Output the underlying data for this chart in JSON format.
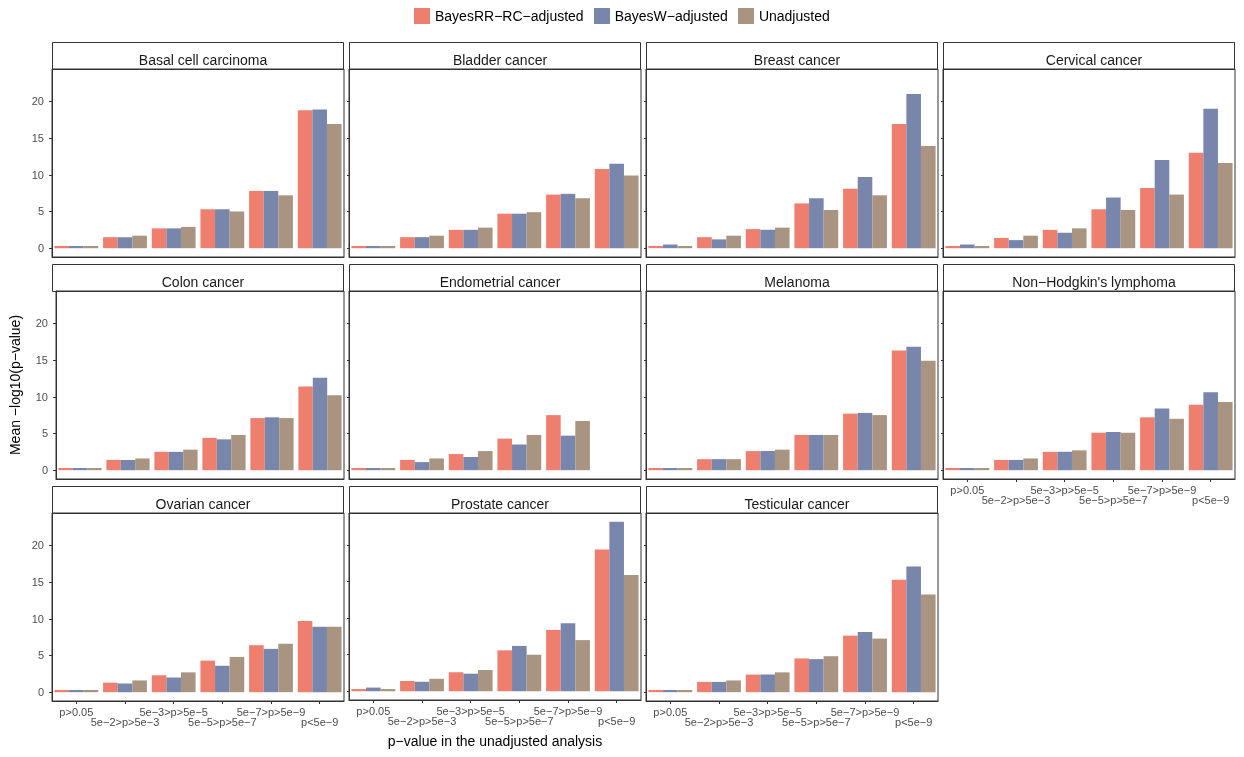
{
  "chart_data": [
    {
      "type": "bar",
      "title": "Basal cell carcinoma",
      "legend": "top",
      "tick_labels": "y",
      "categories": [
        "p>0.05",
        "5e−2>p>5e−3",
        "5e−3>p>5e−5",
        "5e−5>p>5e−7",
        "5e−7>p>5e−9",
        "p<5e−9"
      ],
      "ylim": [
        -1.2,
        24.4
      ],
      "yticks": [
        0,
        5,
        10,
        15,
        20
      ],
      "series": [
        {
          "name": "BayesRR−RC−adjusted",
          "color": "#ee7f6f",
          "values": [
            0.3,
            1.5,
            2.7,
            5.3,
            7.8,
            18.8
          ]
        },
        {
          "name": "BayesW−adjusted",
          "color": "#7886ac",
          "values": [
            0.3,
            1.5,
            2.7,
            5.3,
            7.8,
            18.9
          ]
        },
        {
          "name": "Unadjusted",
          "color": "#a89480",
          "values": [
            0.3,
            1.7,
            2.9,
            5.0,
            7.2,
            16.9
          ]
        }
      ]
    },
    {
      "type": "bar",
      "title": "Bladder cancer",
      "tick_labels": false,
      "categories": [
        "p>0.05",
        "5e−2>p>5e−3",
        "5e−3>p>5e−5",
        "5e−5>p>5e−7",
        "5e−7>p>5e−9",
        "p<5e−9"
      ],
      "ylim": [
        -1.2,
        24.4
      ],
      "yticks": [
        0,
        5,
        10,
        15,
        20
      ],
      "series": [
        {
          "name": "BayesRR−RC−adjusted",
          "color": "#ee7f6f",
          "values": [
            0.3,
            1.5,
            2.5,
            4.7,
            7.3,
            10.8
          ]
        },
        {
          "name": "BayesW−adjusted",
          "color": "#7886ac",
          "values": [
            0.3,
            1.5,
            2.5,
            4.7,
            7.4,
            11.5
          ]
        },
        {
          "name": "Unadjusted",
          "color": "#a89480",
          "values": [
            0.3,
            1.7,
            2.8,
            4.9,
            6.8,
            9.9
          ]
        }
      ]
    },
    {
      "type": "bar",
      "title": "Breast cancer",
      "tick_labels": false,
      "categories": [
        "p>0.05",
        "5e−2>p>5e−3",
        "5e−3>p>5e−5",
        "5e−5>p>5e−7",
        "5e−7>p>5e−9",
        "p<5e−9"
      ],
      "ylim": [
        -1.2,
        24.4
      ],
      "yticks": [
        0,
        5,
        10,
        15,
        20
      ],
      "series": [
        {
          "name": "BayesRR−RC−adjusted",
          "color": "#ee7f6f",
          "values": [
            0.3,
            1.5,
            2.6,
            6.1,
            8.1,
            16.9
          ]
        },
        {
          "name": "BayesW−adjusted",
          "color": "#7886ac",
          "values": [
            0.5,
            1.2,
            2.5,
            6.8,
            9.7,
            21.0
          ]
        },
        {
          "name": "Unadjusted",
          "color": "#a89480",
          "values": [
            0.3,
            1.7,
            2.8,
            5.2,
            7.2,
            13.9
          ]
        }
      ]
    },
    {
      "type": "bar",
      "title": "Cervical cancer",
      "tick_labels": false,
      "categories": [
        "p>0.05",
        "5e−2>p>5e−3",
        "5e−3>p>5e−5",
        "5e−5>p>5e−7",
        "5e−7>p>5e−9",
        "p<5e−9"
      ],
      "ylim": [
        -1.2,
        24.4
      ],
      "yticks": [
        0,
        5,
        10,
        15,
        20
      ],
      "series": [
        {
          "name": "BayesRR−RC−adjusted",
          "color": "#ee7f6f",
          "values": [
            0.3,
            1.4,
            2.5,
            5.3,
            8.2,
            13.0
          ]
        },
        {
          "name": "BayesW−adjusted",
          "color": "#7886ac",
          "values": [
            0.5,
            1.1,
            2.1,
            6.9,
            12.0,
            19.0
          ]
        },
        {
          "name": "Unadjusted",
          "color": "#a89480",
          "values": [
            0.3,
            1.7,
            2.7,
            5.2,
            7.3,
            11.6
          ]
        }
      ]
    },
    {
      "type": "bar",
      "title": "Colon cancer",
      "ylabel": "Mean −log10(p−value)",
      "tick_labels": "y",
      "categories": [
        "p>0.05",
        "5e−2>p>5e−3",
        "5e−3>p>5e−5",
        "5e−5>p>5e−7",
        "5e−7>p>5e−9",
        "p<5e−9"
      ],
      "ylim": [
        -1.2,
        24.4
      ],
      "yticks": [
        0,
        5,
        10,
        15,
        20
      ],
      "series": [
        {
          "name": "BayesRR−RC−adjusted",
          "color": "#ee7f6f",
          "values": [
            0.3,
            1.4,
            2.5,
            4.4,
            7.1,
            11.4
          ]
        },
        {
          "name": "BayesW−adjusted",
          "color": "#7886ac",
          "values": [
            0.3,
            1.4,
            2.5,
            4.2,
            7.2,
            12.6
          ]
        },
        {
          "name": "Unadjusted",
          "color": "#a89480",
          "values": [
            0.3,
            1.6,
            2.8,
            4.8,
            7.1,
            10.2
          ]
        }
      ]
    },
    {
      "type": "bar",
      "title": "Endometrial cancer",
      "tick_labels": false,
      "categories": [
        "p>0.05",
        "5e−2>p>5e−3",
        "5e−3>p>5e−5",
        "5e−5>p>5e−7",
        "5e−7>p>5e−9",
        "p<5e−9"
      ],
      "ylim": [
        -1.2,
        24.4
      ],
      "yticks": [
        0,
        5,
        10,
        15,
        20
      ],
      "series": [
        {
          "name": "BayesRR−RC−adjusted",
          "color": "#ee7f6f",
          "values": [
            0.3,
            1.4,
            2.2,
            4.3,
            7.5,
            null
          ]
        },
        {
          "name": "BayesW−adjusted",
          "color": "#7886ac",
          "values": [
            0.3,
            1.1,
            1.8,
            3.5,
            4.7,
            null
          ]
        },
        {
          "name": "Unadjusted",
          "color": "#a89480",
          "values": [
            0.3,
            1.6,
            2.6,
            4.8,
            6.7,
            null
          ]
        }
      ]
    },
    {
      "type": "bar",
      "title": "Melanoma",
      "tick_labels": false,
      "categories": [
        "p>0.05",
        "5e−2>p>5e−3",
        "5e−3>p>5e−5",
        "5e−5>p>5e−7",
        "5e−7>p>5e−9",
        "p<5e−9"
      ],
      "ylim": [
        -1.2,
        24.4
      ],
      "yticks": [
        0,
        5,
        10,
        15,
        20
      ],
      "series": [
        {
          "name": "BayesRR−RC−adjusted",
          "color": "#ee7f6f",
          "values": [
            0.3,
            1.5,
            2.6,
            4.8,
            7.7,
            16.3
          ]
        },
        {
          "name": "BayesW−adjusted",
          "color": "#7886ac",
          "values": [
            0.3,
            1.5,
            2.6,
            4.8,
            7.8,
            16.8
          ]
        },
        {
          "name": "Unadjusted",
          "color": "#a89480",
          "values": [
            0.3,
            1.5,
            2.8,
            4.8,
            7.5,
            14.9
          ]
        }
      ]
    },
    {
      "type": "bar",
      "title": "Non−Hodgkin's lymphoma",
      "tick_labels": "x",
      "categories": [
        "p>0.05",
        "5e−2>p>5e−3",
        "5e−3>p>5e−5",
        "5e−5>p>5e−7",
        "5e−7>p>5e−9",
        "p<5e−9"
      ],
      "ylim": [
        -1.2,
        24.4
      ],
      "yticks": [
        0,
        5,
        10,
        15,
        20
      ],
      "series": [
        {
          "name": "BayesRR−RC−adjusted",
          "color": "#ee7f6f",
          "values": [
            0.3,
            1.4,
            2.5,
            5.1,
            7.2,
            8.9
          ]
        },
        {
          "name": "BayesW−adjusted",
          "color": "#7886ac",
          "values": [
            0.3,
            1.4,
            2.5,
            5.2,
            8.4,
            10.6
          ]
        },
        {
          "name": "Unadjusted",
          "color": "#a89480",
          "values": [
            0.3,
            1.6,
            2.7,
            5.1,
            7.0,
            9.3
          ]
        }
      ]
    },
    {
      "type": "bar",
      "title": "Ovarian cancer",
      "categories": [
        "p>0.05",
        "5e−2>p>5e−3",
        "5e−3>p>5e−5",
        "5e−5>p>5e−7",
        "5e−7>p>5e−9",
        "p<5e−9"
      ],
      "ylim": [
        -1.2,
        24.4
      ],
      "yticks": [
        0,
        5,
        10,
        15,
        20
      ],
      "series": [
        {
          "name": "BayesRR−RC−adjusted",
          "color": "#ee7f6f",
          "values": [
            0.3,
            1.3,
            2.3,
            4.3,
            6.4,
            9.7
          ]
        },
        {
          "name": "BayesW−adjusted",
          "color": "#7886ac",
          "values": [
            0.3,
            1.2,
            2.0,
            3.6,
            5.9,
            8.9
          ]
        },
        {
          "name": "Unadjusted",
          "color": "#a89480",
          "values": [
            0.3,
            1.6,
            2.7,
            4.8,
            6.6,
            8.9
          ]
        }
      ]
    },
    {
      "type": "bar",
      "title": "Prostate cancer",
      "xlabel": "p−value in the unadjusted analysis",
      "tick_labels": "x",
      "categories": [
        "p>0.05",
        "5e−2>p>5e−3",
        "5e−3>p>5e−5",
        "5e−5>p>5e−7",
        "5e−7>p>5e−9",
        "p<5e−9"
      ],
      "ylim": [
        -1.2,
        24.4
      ],
      "yticks": [
        0,
        5,
        10,
        15,
        20
      ],
      "series": [
        {
          "name": "BayesRR−RC−adjusted",
          "color": "#ee7f6f",
          "values": [
            0.3,
            1.4,
            2.6,
            5.6,
            8.4,
            19.4
          ]
        },
        {
          "name": "BayesW−adjusted",
          "color": "#7886ac",
          "values": [
            0.5,
            1.3,
            2.4,
            6.2,
            9.3,
            23.2
          ]
        },
        {
          "name": "Unadjusted",
          "color": "#a89480",
          "values": [
            0.3,
            1.7,
            2.9,
            5.0,
            7.0,
            15.9
          ]
        }
      ]
    },
    {
      "type": "bar",
      "title": "Testicular cancer",
      "tick_labels": "x",
      "categories": [
        "p>0.05",
        "5e−2>p>5e−3",
        "5e−3>p>5e−5",
        "5e−5>p>5e−7",
        "5e−7>p>5e−9",
        "p<5e−9"
      ],
      "ylim": [
        -1.2,
        24.4
      ],
      "yticks": [
        0,
        5,
        10,
        15,
        20
      ],
      "series": [
        {
          "name": "BayesRR−RC−adjusted",
          "color": "#ee7f6f",
          "values": [
            0.3,
            1.4,
            2.4,
            4.6,
            7.7,
            15.3
          ]
        },
        {
          "name": "BayesW−adjusted",
          "color": "#7886ac",
          "values": [
            0.3,
            1.4,
            2.4,
            4.5,
            8.2,
            17.1
          ]
        },
        {
          "name": "Unadjusted",
          "color": "#a89480",
          "values": [
            0.3,
            1.6,
            2.7,
            4.9,
            7.3,
            13.3
          ]
        }
      ]
    }
  ]
}
